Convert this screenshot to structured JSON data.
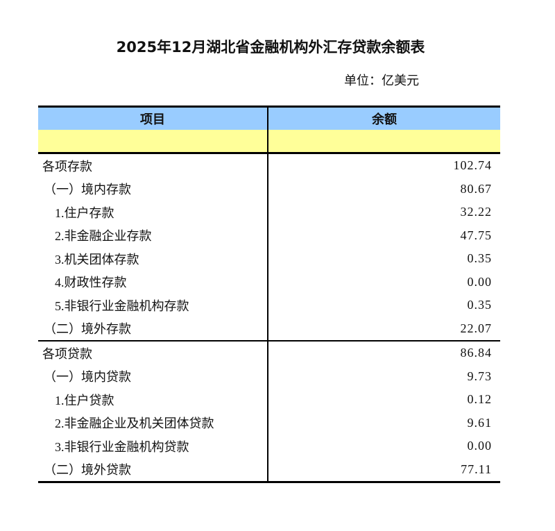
{
  "title": "2025年12月湖北省金融机构外汇存贷款余额表",
  "unit": "单位：亿美元",
  "headers": {
    "item": "项目",
    "amount": "余额"
  },
  "colors": {
    "header_bg": "#99ccff",
    "subheader_bg": "#ffff99"
  },
  "deposits": [
    {
      "label": "各项存款",
      "value": "102.74",
      "level": 0
    },
    {
      "label": "（一）境内存款",
      "value": "80.67",
      "level": 1
    },
    {
      "label": "1.住户存款",
      "value": "32.22",
      "level": 2
    },
    {
      "label": "2.非金融企业存款",
      "value": "47.75",
      "level": 2
    },
    {
      "label": "3.机关团体存款",
      "value": "0.35",
      "level": 2
    },
    {
      "label": "4.财政性存款",
      "value": "0.00",
      "level": 2
    },
    {
      "label": "5.非银行业金融机构存款",
      "value": "0.35",
      "level": 2
    },
    {
      "label": "（二）境外存款",
      "value": "22.07",
      "level": 1
    }
  ],
  "loans": [
    {
      "label": "各项贷款",
      "value": "86.84",
      "level": 0
    },
    {
      "label": "（一）境内贷款",
      "value": "9.73",
      "level": 1
    },
    {
      "label": "1.住户贷款",
      "value": "0.12",
      "level": 2
    },
    {
      "label": "2.非金融企业及机关团体贷款",
      "value": "9.61",
      "level": 2
    },
    {
      "label": "3.非银行业金融机构贷款",
      "value": "0.00",
      "level": 2
    },
    {
      "label": "（二）境外贷款",
      "value": "77.11",
      "level": 1
    }
  ]
}
